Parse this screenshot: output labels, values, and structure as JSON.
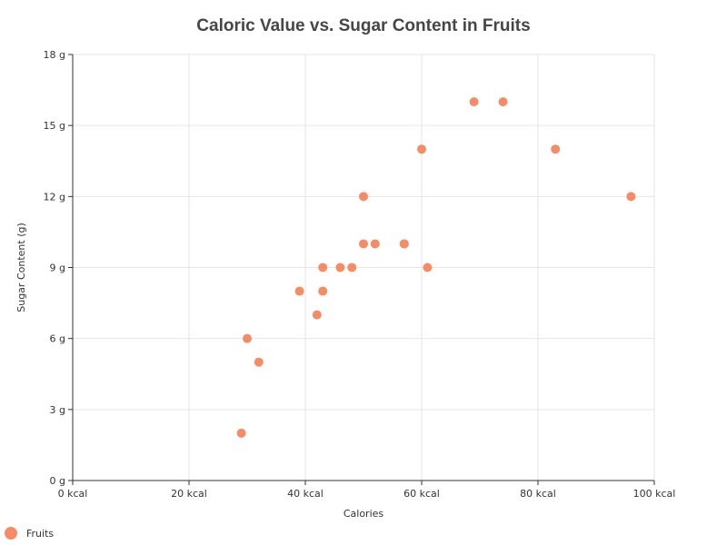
{
  "chart_data": {
    "type": "scatter",
    "title": "Caloric Value vs. Sugar Content in Fruits",
    "xlabel": "Calories",
    "ylabel": "Sugar Content (g)",
    "xlim": [
      0,
      100
    ],
    "ylim": [
      0,
      18
    ],
    "x_ticks": [
      0,
      20,
      40,
      60,
      80,
      100
    ],
    "x_tick_labels": [
      "0 kcal",
      "20 kcal",
      "40 kcal",
      "60 kcal",
      "80 kcal",
      "100 kcal"
    ],
    "y_ticks": [
      0,
      3,
      6,
      9,
      12,
      15,
      18
    ],
    "y_tick_labels": [
      "0 g",
      "3 g",
      "6 g",
      "9 g",
      "12 g",
      "15 g",
      "18 g"
    ],
    "grid": true,
    "legend_position": "bottom-left",
    "series": [
      {
        "name": "Fruits",
        "color": "#f58c66",
        "points": [
          {
            "x": 29,
            "y": 2
          },
          {
            "x": 30,
            "y": 6
          },
          {
            "x": 32,
            "y": 5
          },
          {
            "x": 39,
            "y": 8
          },
          {
            "x": 42,
            "y": 7
          },
          {
            "x": 43,
            "y": 9
          },
          {
            "x": 43,
            "y": 8
          },
          {
            "x": 46,
            "y": 9
          },
          {
            "x": 48,
            "y": 9
          },
          {
            "x": 50,
            "y": 12
          },
          {
            "x": 50,
            "y": 10
          },
          {
            "x": 52,
            "y": 10
          },
          {
            "x": 57,
            "y": 10
          },
          {
            "x": 57,
            "y": 10
          },
          {
            "x": 60,
            "y": 14
          },
          {
            "x": 61,
            "y": 9
          },
          {
            "x": 69,
            "y": 16
          },
          {
            "x": 74,
            "y": 16
          },
          {
            "x": 83,
            "y": 14
          },
          {
            "x": 96,
            "y": 12
          }
        ]
      }
    ]
  }
}
